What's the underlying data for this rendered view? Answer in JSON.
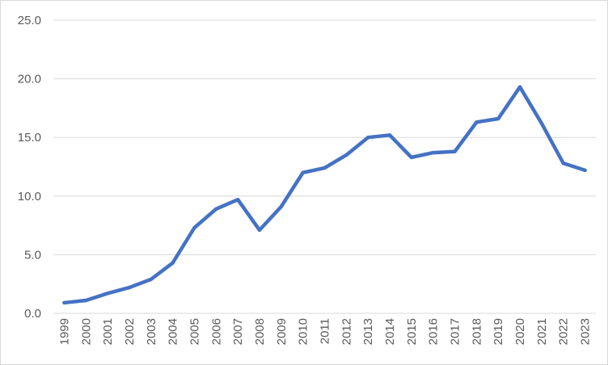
{
  "chart_data": {
    "type": "line",
    "title": "",
    "xlabel": "",
    "ylabel": "",
    "ylim": [
      0,
      25
    ],
    "y_ticks": [
      "0.0",
      "5.0",
      "10.0",
      "15.0",
      "20.0",
      "25.0"
    ],
    "grid": true,
    "legend": "none",
    "categories": [
      "1999",
      "2000",
      "2001",
      "2002",
      "2003",
      "2004",
      "2005",
      "2006",
      "2007",
      "2008",
      "2009",
      "2010",
      "2011",
      "2012",
      "2013",
      "2014",
      "2015",
      "2016",
      "2017",
      "2018",
      "2019",
      "2020",
      "2021",
      "2022",
      "2023"
    ],
    "series": [
      {
        "color": "#4472c4",
        "values": [
          0.9,
          1.1,
          1.7,
          2.2,
          2.9,
          4.3,
          7.3,
          8.9,
          9.7,
          7.1,
          9.1,
          12.0,
          12.4,
          13.5,
          15.0,
          15.2,
          13.3,
          13.7,
          13.8,
          16.3,
          16.6,
          19.3,
          16.2,
          12.8,
          12.2
        ]
      }
    ]
  }
}
